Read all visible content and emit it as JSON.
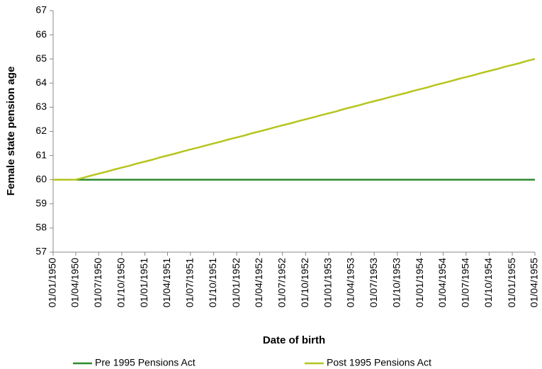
{
  "chart_data": {
    "type": "line",
    "y_label": "Female state pension age",
    "x_label": "Date of birth",
    "x": [
      "01/01/1950",
      "01/02/1950",
      "01/03/1950",
      "01/04/1950",
      "01/05/1950",
      "01/06/1950",
      "01/07/1950",
      "01/08/1950",
      "01/09/1950",
      "01/10/1950",
      "01/11/1950",
      "01/12/1950",
      "01/01/1951",
      "01/02/1951",
      "01/03/1951",
      "01/04/1951",
      "01/05/1951",
      "01/06/1951",
      "01/07/1951",
      "01/08/1951",
      "01/09/1951",
      "01/10/1951",
      "01/11/1951",
      "01/12/1951",
      "01/01/1952",
      "01/02/1952",
      "01/03/1952",
      "01/04/1952",
      "01/05/1952",
      "01/06/1952",
      "01/07/1952",
      "01/08/1952",
      "01/09/1952",
      "01/10/1952",
      "01/11/1952",
      "01/12/1952",
      "01/01/1953",
      "01/02/1953",
      "01/03/1953",
      "01/04/1953",
      "01/05/1953",
      "01/06/1953",
      "01/07/1953",
      "01/08/1953",
      "01/09/1953",
      "01/10/1953",
      "01/11/1953",
      "01/12/1953",
      "01/01/1954",
      "01/02/1954",
      "01/03/1954",
      "01/04/1954",
      "01/05/1954",
      "01/06/1954",
      "01/07/1954",
      "01/08/1954",
      "01/09/1954",
      "01/10/1954",
      "01/11/1954",
      "01/12/1954",
      "01/01/1955",
      "01/02/1955",
      "01/03/1955",
      "01/04/1955"
    ],
    "series": [
      {
        "name": "Pre 1995 Pensions Act",
        "color": "#2e8b2e",
        "values": [
          60,
          60,
          60,
          60,
          60,
          60,
          60,
          60,
          60,
          60,
          60,
          60,
          60,
          60,
          60,
          60,
          60,
          60,
          60,
          60,
          60,
          60,
          60,
          60,
          60,
          60,
          60,
          60,
          60,
          60,
          60,
          60,
          60,
          60,
          60,
          60,
          60,
          60,
          60,
          60,
          60,
          60,
          60,
          60,
          60,
          60,
          60,
          60,
          60,
          60,
          60,
          60,
          60,
          60,
          60,
          60,
          60,
          60,
          60,
          60,
          60,
          60,
          60,
          60
        ]
      },
      {
        "name": "Post 1995 Pensions Act",
        "color": "#b5c51c",
        "values": [
          60,
          60,
          60,
          60,
          60.08,
          60.17,
          60.25,
          60.33,
          60.42,
          60.5,
          60.58,
          60.67,
          60.75,
          60.83,
          60.92,
          61,
          61.08,
          61.17,
          61.25,
          61.33,
          61.42,
          61.5,
          61.58,
          61.67,
          61.75,
          61.83,
          61.92,
          62,
          62.08,
          62.17,
          62.25,
          62.33,
          62.42,
          62.5,
          62.58,
          62.67,
          62.75,
          62.83,
          62.92,
          63,
          63.08,
          63.17,
          63.25,
          63.33,
          63.42,
          63.5,
          63.58,
          63.67,
          63.75,
          63.83,
          63.92,
          64,
          64.08,
          64.17,
          64.25,
          64.33,
          64.42,
          64.5,
          64.58,
          64.67,
          64.75,
          64.83,
          64.92,
          65
        ]
      }
    ],
    "xlim": [
      "01/01/1950",
      "01/04/1955"
    ],
    "xticks": [
      "01/01/1950",
      "01/04/1950",
      "01/07/1950",
      "01/10/1950",
      "01/01/1951",
      "01/04/1951",
      "01/07/1951",
      "01/10/1951",
      "01/01/1952",
      "01/04/1952",
      "01/07/1952",
      "01/10/1952",
      "01/01/1953",
      "01/04/1953",
      "01/07/1953",
      "01/10/1953",
      "01/01/1954",
      "01/04/1954",
      "01/07/1954",
      "01/10/1954",
      "01/01/1955",
      "01/04/1955"
    ],
    "ylim": [
      57,
      67
    ],
    "yticks": [
      57,
      58,
      59,
      60,
      61,
      62,
      63,
      64,
      65,
      66,
      67
    ],
    "grid": false,
    "legend": "bottom"
  }
}
